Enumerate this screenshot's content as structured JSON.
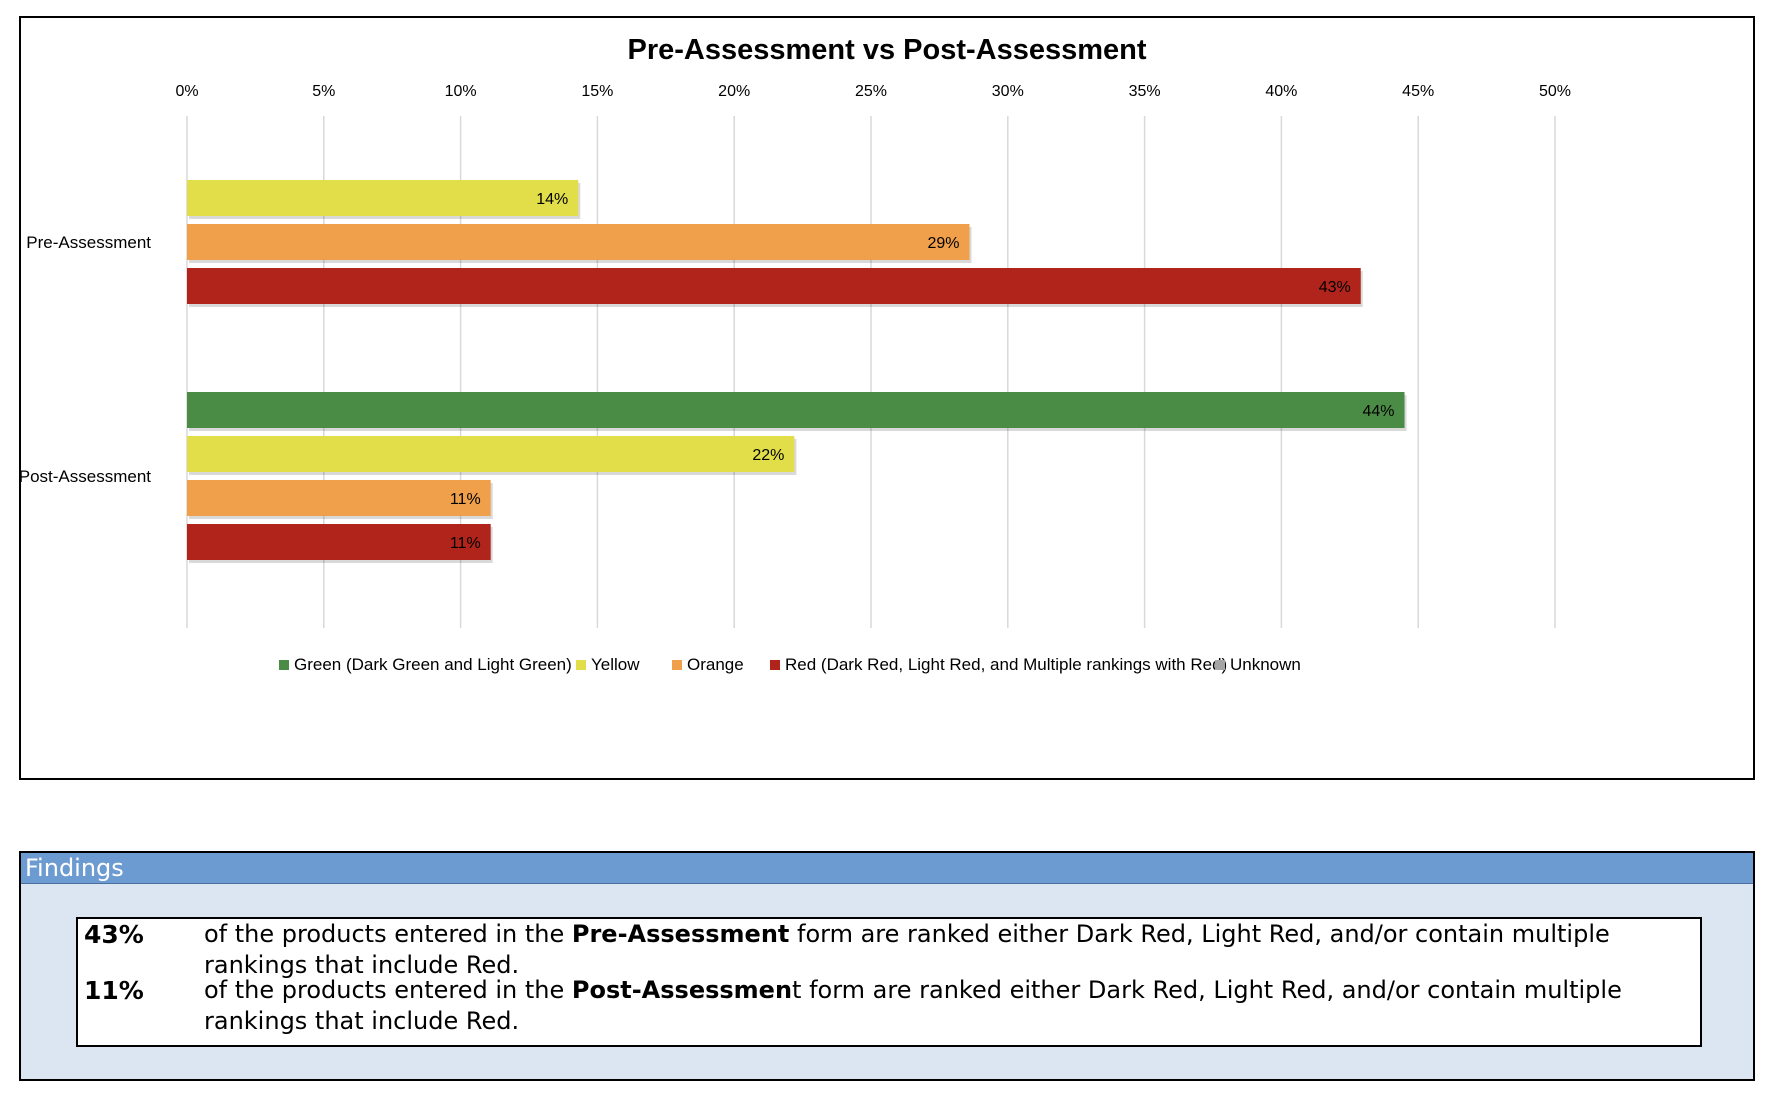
{
  "chart_data": {
    "type": "bar",
    "orientation": "horizontal",
    "title": "Pre-Assessment vs Post-Assessment",
    "xlim": [
      0,
      50
    ],
    "x_ticks": [
      "0%",
      "5%",
      "10%",
      "15%",
      "20%",
      "25%",
      "30%",
      "35%",
      "40%",
      "45%",
      "50%"
    ],
    "grid": true,
    "legend_position": "bottom",
    "categories": [
      "Pre-Assessment",
      "Post-Assessment"
    ],
    "series": [
      {
        "name": "Green (Dark Green and Light Green)",
        "color": "#4a8b45",
        "values": [
          0,
          44.5
        ],
        "labels": [
          "",
          "44%"
        ]
      },
      {
        "name": "Yellow",
        "color": "#e2de4a",
        "values": [
          14.3,
          22.2
        ],
        "labels": [
          "14%",
          "22%"
        ]
      },
      {
        "name": "Orange",
        "color": "#f0a04b",
        "values": [
          28.6,
          11.1
        ],
        "labels": [
          "29%",
          "11%"
        ]
      },
      {
        "name": "Red (Dark Red, Light Red, and Multiple rankings with Red)",
        "color": "#b1241c",
        "values": [
          42.9,
          11.1
        ],
        "labels": [
          "43%",
          "11%"
        ]
      },
      {
        "name": "Unknown",
        "color": "#a5a5a5",
        "values": [
          0,
          0
        ],
        "labels": [
          "",
          ""
        ]
      }
    ]
  },
  "findings": {
    "header": "Findings",
    "rows": [
      {
        "pct": "43%",
        "pre": "of the products entered in the ",
        "bold": "Pre-Assessment",
        "post": " form are ranked either Dark Red, Light Red, and/or contain multiple rankings that include Red."
      },
      {
        "pct": "11%",
        "pre": "of the products entered in the ",
        "bold": "Post-Assessmen",
        "post": "t form are ranked either Dark Red, Light Red, and/or contain multiple rankings that include Red."
      }
    ]
  }
}
